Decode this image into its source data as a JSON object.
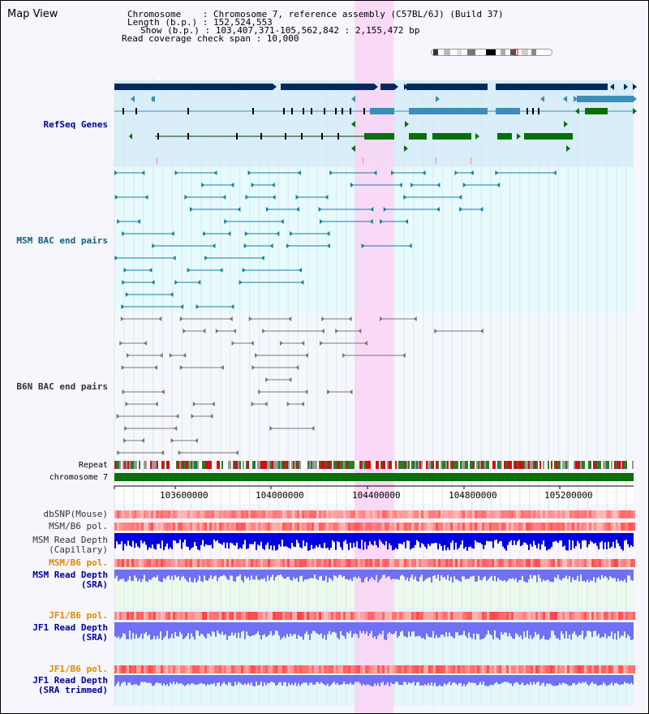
{
  "title": "Map View",
  "info": {
    "chromosome": "Chromosome    : Chromosome 7, reference assembly (C57BL/6J) (Build 37)",
    "length": "Length (b.p.) : 152,524,553",
    "show": "Show (b.p.) : 103,407,371-105,562,842 : 2,155,472 bp",
    "read_span": "Read coverage check span : 10,000"
  },
  "labels": {
    "refseq": "RefSeq Genes",
    "msm_bac": "MSM BAC end pairs",
    "b6n_bac": "B6N BAC end pairs",
    "repeat": "Repeat",
    "chromosome": "chromosome 7",
    "dbsnp": "dbSNP(Mouse)",
    "msm_pol": "MSM/B6 pol.",
    "msm_depth_cap_1": "MSM Read Depth",
    "msm_depth_cap_2": "(Capillary)",
    "msm_pol_sra": "MSM/B6 pol.",
    "msm_depth_sra_1": "MSM Read Depth",
    "msm_depth_sra_2": "(SRA)",
    "jf1_pol": "JF1/B6 pol.",
    "jf1_depth_1": "JF1 Read Depth",
    "jf1_depth_2": "(SRA)",
    "jf1_pol_trim": "JF1/B6 pol.",
    "jf1_trim_1": "JF1 Read Depth",
    "jf1_trim_2": "(SRA trimmed)"
  },
  "axis_ticks": [
    "103600000",
    "104000000",
    "104400000",
    "104800000",
    "105200000"
  ],
  "colors": {
    "highlight": "#fad4f4",
    "refseq_bg": "#d8eef8",
    "bac_bg": "#e6fbfb",
    "gene_dark": "#002a5e",
    "gene_mid": "#3d8db8",
    "gene_green": "#087008",
    "chromosome": "#0a6e0a",
    "depth_dark": "#0000e0",
    "depth_light": "#7070f4"
  }
}
